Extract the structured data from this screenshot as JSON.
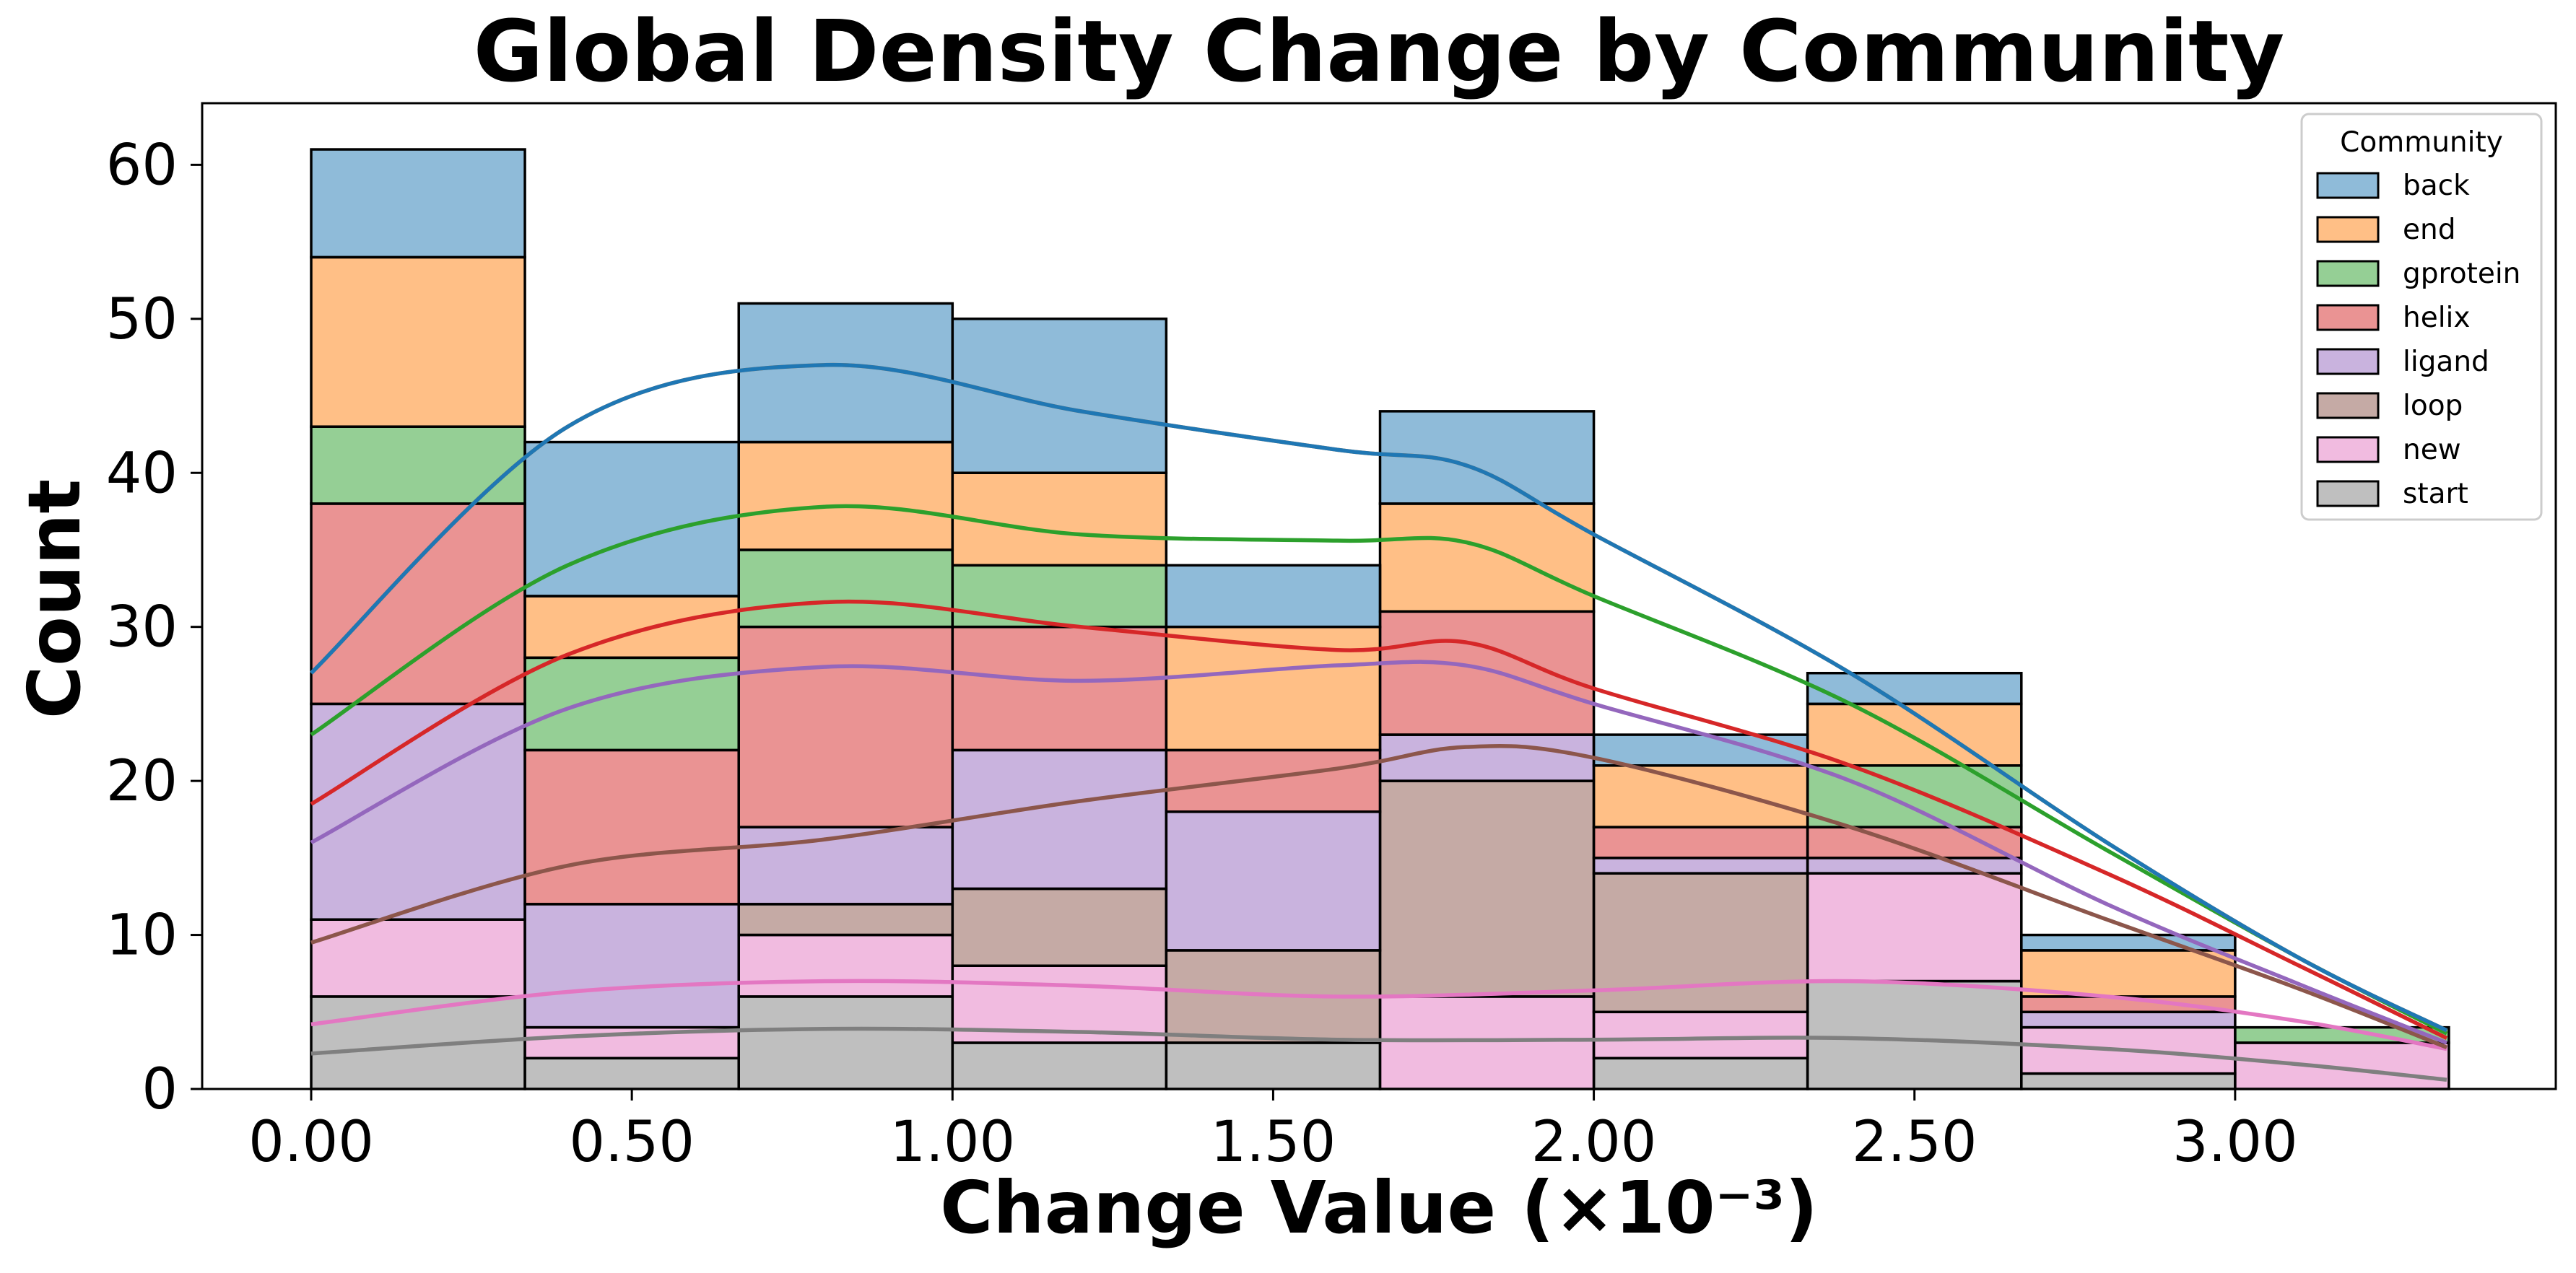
{
  "chart_data": {
    "type": "bar",
    "subtype": "stacked-histogram-with-kde",
    "title": "Global Density Change by Community",
    "xlabel": "Change Value (×10⁻³)",
    "ylabel": "Count",
    "xlim": [
      -0.17,
      3.5
    ],
    "ylim": [
      0,
      64
    ],
    "bin_edges": [
      0.0,
      0.3333,
      0.6667,
      1.0,
      1.3333,
      1.6667,
      2.0,
      2.3333,
      2.6667,
      3.0,
      3.3333
    ],
    "x_ticks": [
      0.0,
      0.5,
      1.0,
      1.5,
      2.0,
      2.5,
      3.0
    ],
    "x_tick_labels": [
      "0.00",
      "0.50",
      "1.00",
      "1.50",
      "2.00",
      "2.50",
      "3.00"
    ],
    "y_ticks": [
      0,
      10,
      20,
      30,
      40,
      50,
      60
    ],
    "y_tick_labels": [
      "0",
      "10",
      "20",
      "30",
      "40",
      "50",
      "60"
    ],
    "grid": false,
    "legend": {
      "title": "Community",
      "position": "top-right"
    },
    "series": [
      {
        "name": "start",
        "color": "#7f7f7f",
        "counts": [
          6,
          2,
          6,
          3,
          3,
          0,
          2,
          7,
          1,
          0
        ],
        "kde": [
          [
            0.0,
            2.3
          ],
          [
            0.4,
            3.4
          ],
          [
            0.8,
            3.9
          ],
          [
            1.2,
            3.7
          ],
          [
            1.6,
            3.2
          ],
          [
            2.0,
            3.2
          ],
          [
            2.4,
            3.3
          ],
          [
            2.8,
            2.6
          ],
          [
            3.1,
            1.6
          ],
          [
            3.33,
            0.6
          ]
        ]
      },
      {
        "name": "new",
        "color": "#e377c2",
        "counts": [
          5,
          2,
          4,
          5,
          0,
          6,
          3,
          7,
          3,
          3
        ],
        "kde": [
          [
            0.0,
            4.2
          ],
          [
            0.4,
            6.3
          ],
          [
            0.8,
            7.0
          ],
          [
            1.2,
            6.7
          ],
          [
            1.6,
            6.0
          ],
          [
            2.0,
            6.4
          ],
          [
            2.4,
            7.0
          ],
          [
            2.8,
            6.0
          ],
          [
            3.1,
            4.4
          ],
          [
            3.33,
            2.6
          ]
        ]
      },
      {
        "name": "loop",
        "color": "#8c564b",
        "counts": [
          0,
          0,
          2,
          5,
          6,
          14,
          9,
          0,
          0,
          0
        ],
        "kde": [
          [
            0.0,
            9.5
          ],
          [
            0.4,
            14.5
          ],
          [
            0.8,
            16.2
          ],
          [
            1.2,
            18.7
          ],
          [
            1.6,
            20.8
          ],
          [
            1.8,
            22.2
          ],
          [
            2.0,
            21.5
          ],
          [
            2.4,
            17.0
          ],
          [
            2.8,
            11.0
          ],
          [
            3.1,
            6.5
          ],
          [
            3.33,
            2.7
          ]
        ]
      },
      {
        "name": "ligand",
        "color": "#9467bd",
        "counts": [
          14,
          8,
          5,
          9,
          9,
          3,
          1,
          1,
          1,
          0
        ],
        "kde": [
          [
            0.0,
            16.0
          ],
          [
            0.4,
            24.7
          ],
          [
            0.8,
            27.4
          ],
          [
            1.2,
            26.5
          ],
          [
            1.6,
            27.5
          ],
          [
            1.8,
            27.5
          ],
          [
            2.0,
            25.0
          ],
          [
            2.4,
            20.0
          ],
          [
            2.8,
            12.0
          ],
          [
            3.1,
            6.8
          ],
          [
            3.33,
            3.0
          ]
        ]
      },
      {
        "name": "helix",
        "color": "#d62728",
        "counts": [
          13,
          10,
          13,
          8,
          4,
          8,
          2,
          2,
          1,
          0
        ],
        "kde": [
          [
            0.0,
            18.5
          ],
          [
            0.4,
            28.2
          ],
          [
            0.8,
            31.6
          ],
          [
            1.2,
            30.0
          ],
          [
            1.6,
            28.5
          ],
          [
            1.8,
            29.0
          ],
          [
            2.0,
            26.0
          ],
          [
            2.4,
            21.0
          ],
          [
            2.8,
            14.0
          ],
          [
            3.1,
            8.0
          ],
          [
            3.33,
            3.3
          ]
        ]
      },
      {
        "name": "gprotein",
        "color": "#2ca02c",
        "counts": [
          5,
          6,
          5,
          4,
          0,
          0,
          0,
          4,
          0,
          1
        ],
        "kde": [
          [
            0.0,
            23.0
          ],
          [
            0.4,
            34.0
          ],
          [
            0.8,
            37.8
          ],
          [
            1.2,
            36.0
          ],
          [
            1.6,
            35.6
          ],
          [
            1.8,
            35.5
          ],
          [
            2.0,
            32.0
          ],
          [
            2.4,
            25.0
          ],
          [
            2.8,
            15.5
          ],
          [
            3.1,
            8.5
          ],
          [
            3.33,
            3.6
          ]
        ]
      },
      {
        "name": "end",
        "color": "#ff7f0e",
        "counts": [
          11,
          4,
          7,
          6,
          8,
          7,
          4,
          4,
          3,
          0
        ],
        "kde": [
          [
            0.0,
            27.0
          ],
          [
            0.4,
            43.0
          ],
          [
            0.8,
            47.0
          ],
          [
            1.2,
            44.0
          ],
          [
            1.6,
            41.5
          ],
          [
            1.8,
            40.5
          ],
          [
            2.0,
            36.0
          ],
          [
            2.4,
            27.0
          ],
          [
            2.8,
            16.0
          ],
          [
            3.1,
            8.5
          ],
          [
            3.33,
            3.8
          ]
        ]
      },
      {
        "name": "back",
        "color": "#1f77b4",
        "counts": [
          7,
          10,
          9,
          10,
          4,
          6,
          2,
          2,
          1,
          0
        ],
        "kde": [
          [
            0.0,
            27.0
          ],
          [
            0.4,
            43.0
          ],
          [
            0.8,
            47.0
          ],
          [
            1.2,
            44.0
          ],
          [
            1.6,
            41.5
          ],
          [
            1.8,
            40.5
          ],
          [
            2.0,
            36.0
          ],
          [
            2.4,
            27.0
          ],
          [
            2.8,
            16.0
          ],
          [
            3.1,
            8.5
          ],
          [
            3.33,
            3.8
          ]
        ]
      }
    ],
    "legend_order": [
      "back",
      "end",
      "gprotein",
      "helix",
      "ligand",
      "loop",
      "new",
      "start"
    ]
  }
}
